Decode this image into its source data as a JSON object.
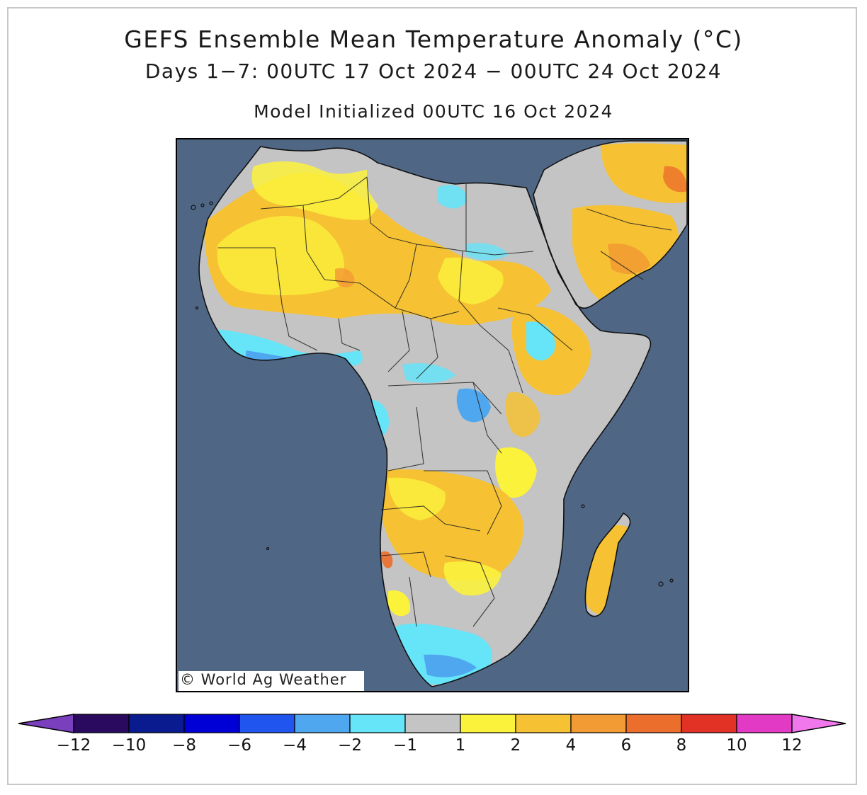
{
  "title": "GEFS Ensemble Mean Temperature Anomaly (°C)",
  "subtitle": "Days 1−7: 00UTC 17 Oct 2024 − 00UTC 24 Oct 2024",
  "initialized": "Model Initialized 00UTC 16 Oct 2024",
  "credit": "© World Ag Weather",
  "map": {
    "ocean_color": "#4f6784",
    "land_default_color": "#c4c4c4",
    "region_names": [
      "Africa",
      "Arabian Peninsula",
      "Madagascar"
    ]
  },
  "colorbar": {
    "labels": [
      "−12",
      "−10",
      "−8",
      "−6",
      "−4",
      "−2",
      "−1",
      "1",
      "2",
      "4",
      "6",
      "8",
      "10",
      "12"
    ],
    "colors": [
      "#7a3fbd",
      "#2a0a5e",
      "#0a1a8f",
      "#0000d6",
      "#2055f0",
      "#4fa7f0",
      "#66e4f8",
      "#c4c4c4",
      "#fbf23c",
      "#f6c233",
      "#f29a33",
      "#ec6e2c",
      "#e23226",
      "#e23ac4",
      "#f078ec"
    ]
  }
}
